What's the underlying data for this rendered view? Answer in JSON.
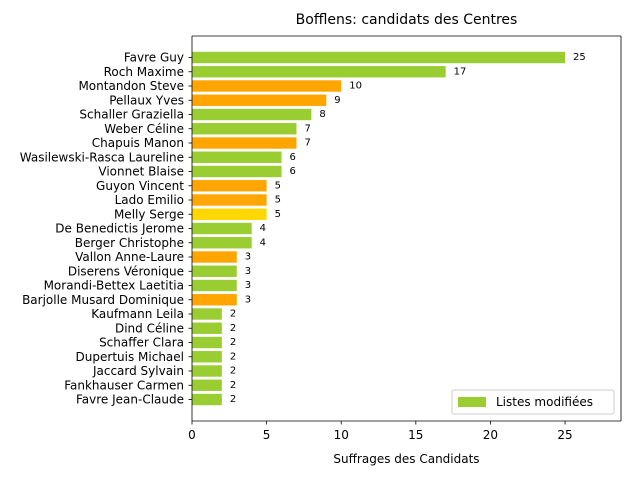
{
  "chart_data": {
    "type": "bar",
    "orientation": "horizontal",
    "title": "Bofflens: candidats des Centres",
    "xlabel": "Suffrages des Candidats",
    "ylabel": "",
    "xlim": [
      0,
      28.75
    ],
    "xticks": [
      0,
      5,
      10,
      15,
      20,
      25
    ],
    "grid": false,
    "legend": {
      "placement": "lower-right",
      "entries": [
        {
          "label": "Listes modifiées",
          "color": "#9acd32"
        }
      ]
    },
    "categories": [
      "Favre Guy",
      "Roch Maxime",
      "Montandon Steve",
      "Pellaux Yves",
      "Schaller Graziella",
      "Weber Céline",
      "Chapuis Manon",
      "Wasilewski-Rasca Laureline",
      "Vionnet Blaise",
      "Guyon Vincent",
      "Lado Emilio",
      "Melly Serge",
      "De Benedictis Jerome",
      "Berger Christophe",
      "Vallon Anne-Laure",
      "Diserens Véronique",
      "Morandi-Bettex Laetitia",
      "Barjolle Musard Dominique",
      "Kaufmann Leila",
      "Dind Céline",
      "Schaffer Clara",
      "Dupertuis Michael",
      "Jaccard Sylvain",
      "Fankhauser Carmen",
      "Favre Jean-Claude"
    ],
    "values": [
      25,
      17,
      10,
      9,
      8,
      7,
      7,
      6,
      6,
      5,
      5,
      5,
      4,
      4,
      3,
      3,
      3,
      3,
      2,
      2,
      2,
      2,
      2,
      2,
      2
    ],
    "value_labels": [
      "25",
      "17",
      "10",
      "9",
      "8",
      "7",
      "7",
      "6",
      "6",
      "5",
      "5",
      "5",
      "4",
      "4",
      "3",
      "3",
      "3",
      "3",
      "2",
      "2",
      "2",
      "2",
      "2",
      "2",
      "2"
    ],
    "colors": [
      "#9acd32",
      "#9acd32",
      "#ffa500",
      "#ffa500",
      "#9acd32",
      "#9acd32",
      "#ffa500",
      "#9acd32",
      "#9acd32",
      "#ffa500",
      "#ffa500",
      "#ffd700",
      "#9acd32",
      "#9acd32",
      "#ffa500",
      "#9acd32",
      "#9acd32",
      "#ffa500",
      "#9acd32",
      "#9acd32",
      "#9acd32",
      "#9acd32",
      "#9acd32",
      "#9acd32",
      "#9acd32"
    ]
  }
}
